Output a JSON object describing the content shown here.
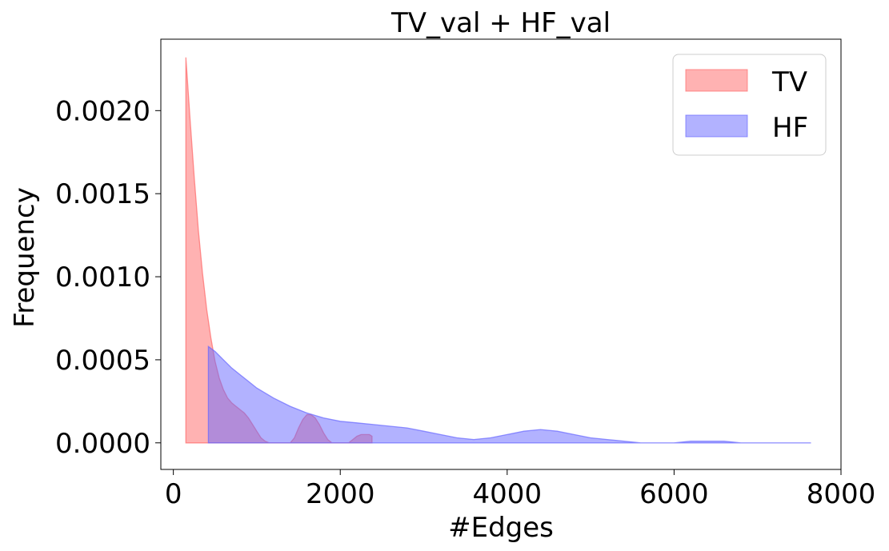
{
  "chart_data": {
    "type": "area",
    "title": "TV_val + HF_val",
    "xlabel": "#Edges",
    "ylabel": "Frequency",
    "xlim": [
      -150,
      8000
    ],
    "ylim": [
      -0.00016,
      0.00243
    ],
    "xticks": [
      0,
      2000,
      4000,
      6000,
      8000
    ],
    "xtick_labels": [
      "0",
      "2000",
      "4000",
      "6000",
      "8000"
    ],
    "yticks": [
      0,
      0.0005,
      0.001,
      0.0015,
      0.002
    ],
    "ytick_labels": [
      "0.0000",
      "0.0005",
      "0.0010",
      "0.0015",
      "0.0020"
    ],
    "grid": false,
    "legend_position": "top-right",
    "series": [
      {
        "name": "TV",
        "color": "#ff6666",
        "points": [
          [
            150,
            0.00232
          ],
          [
            200,
            0.00195
          ],
          [
            250,
            0.0016
          ],
          [
            300,
            0.00128
          ],
          [
            350,
            0.00102
          ],
          [
            400,
            0.0008
          ],
          [
            450,
            0.00063
          ],
          [
            500,
            0.00049
          ],
          [
            550,
            0.00039
          ],
          [
            600,
            0.00032
          ],
          [
            650,
            0.00027
          ],
          [
            700,
            0.00024
          ],
          [
            750,
            0.00022
          ],
          [
            800,
            0.0002
          ],
          [
            850,
            0.00018
          ],
          [
            900,
            0.00015
          ],
          [
            950,
            0.00011
          ],
          [
            1000,
            7e-05
          ],
          [
            1050,
            3e-05
          ],
          [
            1100,
            1e-05
          ],
          [
            1150,
            0.0
          ],
          [
            1200,
            0.0
          ],
          [
            1300,
            0.0
          ],
          [
            1400,
            0.0
          ],
          [
            1450,
            3e-05
          ],
          [
            1500,
            9e-05
          ],
          [
            1550,
            0.00014
          ],
          [
            1600,
            0.00017
          ],
          [
            1650,
            0.00017
          ],
          [
            1700,
            0.00015
          ],
          [
            1750,
            0.00011
          ],
          [
            1800,
            6e-05
          ],
          [
            1850,
            2e-05
          ],
          [
            1900,
            0.0
          ],
          [
            2000,
            0.0
          ],
          [
            2100,
            0.0
          ],
          [
            2150,
            2e-05
          ],
          [
            2200,
            4e-05
          ],
          [
            2250,
            5e-05
          ],
          [
            2300,
            5e-05
          ],
          [
            2350,
            5e-05
          ],
          [
            2380,
            4e-05
          ]
        ]
      },
      {
        "name": "HF",
        "color": "#6666ff",
        "points": [
          [
            420,
            0.00058
          ],
          [
            500,
            0.00055
          ],
          [
            600,
            0.0005
          ],
          [
            700,
            0.00045
          ],
          [
            800,
            0.00041
          ],
          [
            900,
            0.00037
          ],
          [
            1000,
            0.00033
          ],
          [
            1200,
            0.00027
          ],
          [
            1400,
            0.00022
          ],
          [
            1600,
            0.00018
          ],
          [
            1800,
            0.00015
          ],
          [
            2000,
            0.00013
          ],
          [
            2200,
            0.00012
          ],
          [
            2400,
            0.00011
          ],
          [
            2600,
            0.0001
          ],
          [
            2800,
            9e-05
          ],
          [
            3000,
            7e-05
          ],
          [
            3200,
            5e-05
          ],
          [
            3400,
            3e-05
          ],
          [
            3600,
            2e-05
          ],
          [
            3800,
            3e-05
          ],
          [
            4000,
            5e-05
          ],
          [
            4200,
            7e-05
          ],
          [
            4400,
            8e-05
          ],
          [
            4600,
            7e-05
          ],
          [
            4800,
            5e-05
          ],
          [
            5000,
            3e-05
          ],
          [
            5200,
            2e-05
          ],
          [
            5400,
            1e-05
          ],
          [
            5600,
            0.0
          ],
          [
            5800,
            0.0
          ],
          [
            6000,
            0.0
          ],
          [
            6200,
            1e-05
          ],
          [
            6400,
            1e-05
          ],
          [
            6600,
            1e-05
          ],
          [
            6800,
            0.0
          ],
          [
            7000,
            0.0
          ],
          [
            7200,
            0.0
          ],
          [
            7400,
            0.0
          ],
          [
            7640,
            0.0
          ]
        ]
      }
    ]
  }
}
